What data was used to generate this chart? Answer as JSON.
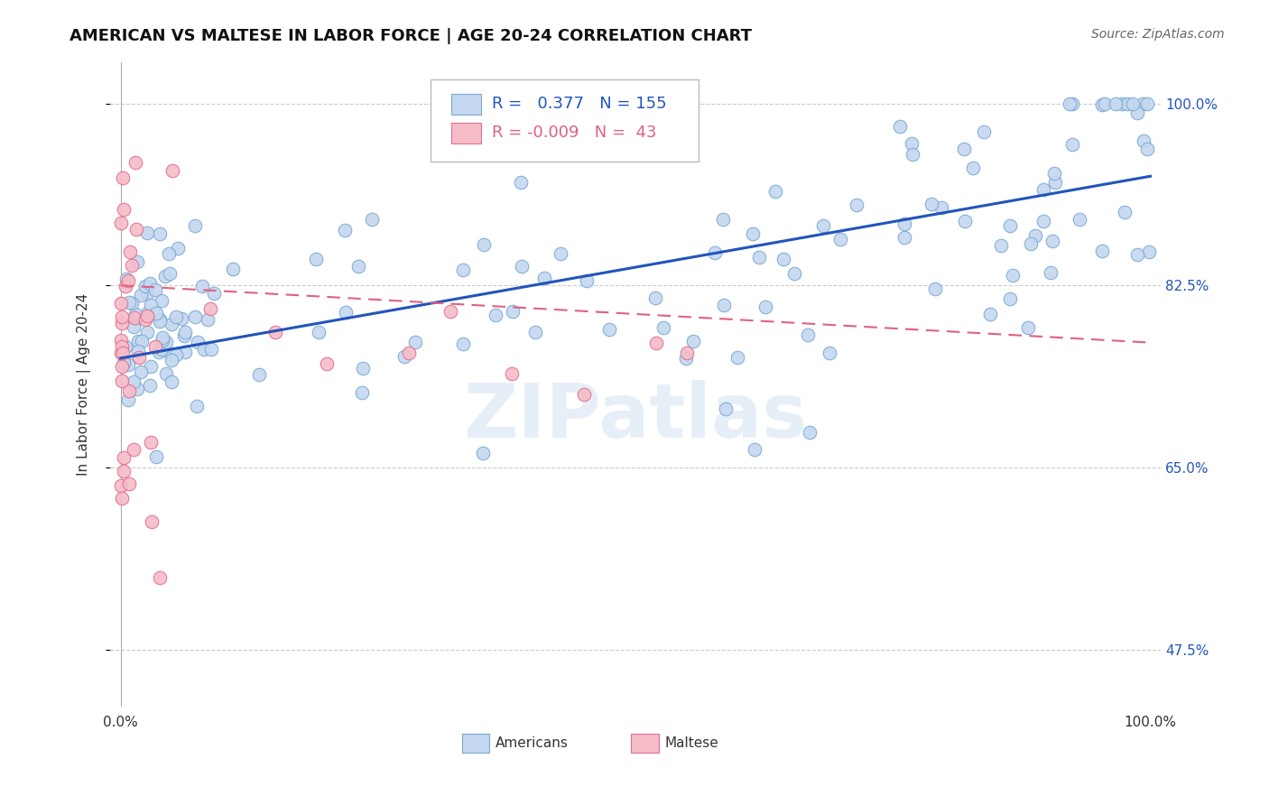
{
  "title": "AMERICAN VS MALTESE IN LABOR FORCE | AGE 20-24 CORRELATION CHART",
  "source_text": "Source: ZipAtlas.com",
  "ylabel": "In Labor Force | Age 20-24",
  "watermark": "ZIPatlas",
  "american_R": 0.377,
  "american_N": 155,
  "maltese_R": -0.009,
  "maltese_N": 43,
  "american_color": "#c5d8f0",
  "american_edge": "#7aaad4",
  "maltese_color": "#f5bcc8",
  "maltese_edge": "#e07090",
  "trend_american_color": "#2255bb",
  "trend_maltese_color": "#e06080",
  "background_color": "#ffffff",
  "grid_color": "#cccccc",
  "title_fontsize": 13,
  "axis_label_fontsize": 11,
  "legend_fontsize": 13,
  "marker_size": 110,
  "ytick_vals": [
    0.475,
    0.65,
    0.825,
    1.0
  ],
  "ytick_labels": [
    "47.5%",
    "65.0%",
    "82.5%",
    "100.0%"
  ],
  "ylim_low": 0.42,
  "ylim_high": 1.04,
  "xlim_low": -0.01,
  "xlim_high": 1.01
}
